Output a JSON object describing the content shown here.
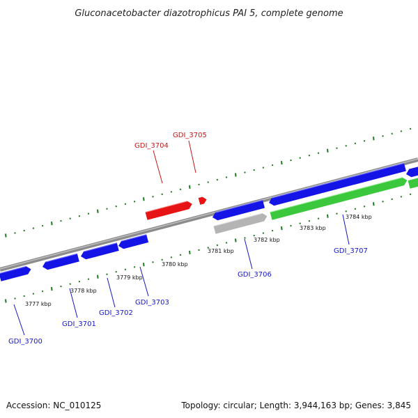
{
  "title": "Gluconacetobacter diazotrophicus PAI 5, complete genome",
  "accession": "Accession: NC_010125",
  "summary": "Topology: circular; Length: 3,944,163 bp; Genes: 3,845",
  "colors": {
    "backbone": "#8c8c8c",
    "tick": "#1e7a1e",
    "forward_gene": "#1414e6",
    "reverse_gene": "#1414e6",
    "highlight_gene": "#e61414",
    "pseudo_gene": "#b4b4b4",
    "rna_gene": "#3cc83c",
    "label_blue": "#1414c8",
    "label_red": "#c81414"
  },
  "scale_ticks": [
    {
      "label": "3777 kbp"
    },
    {
      "label": "3778 kbp"
    },
    {
      "label": "3779 kbp"
    },
    {
      "label": "3780 kbp"
    },
    {
      "label": "3781 kbp"
    },
    {
      "label": "3782 kbp"
    },
    {
      "label": "3783 kbp"
    },
    {
      "label": "3784 kbp"
    }
  ],
  "gene_labels": [
    {
      "id": "GDI_3700",
      "color": "blue"
    },
    {
      "id": "GDI_3701",
      "color": "blue"
    },
    {
      "id": "GDI_3702",
      "color": "blue"
    },
    {
      "id": "GDI_3703",
      "color": "blue"
    },
    {
      "id": "GDI_3704",
      "color": "red"
    },
    {
      "id": "GDI_3705",
      "color": "red"
    },
    {
      "id": "GDI_3706",
      "color": "blue"
    },
    {
      "id": "GDI_3707",
      "color": "blue"
    }
  ]
}
